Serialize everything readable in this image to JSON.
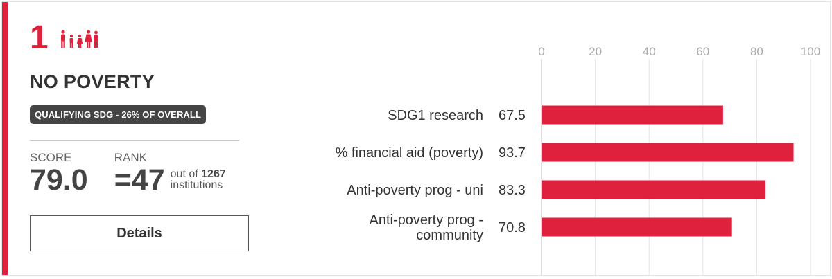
{
  "goal": {
    "number": "1",
    "icon": "family-icon",
    "title": "NO POVERTY",
    "badge": "QUALIFYING SDG - 26% OF OVERALL",
    "accent_color": "#e0213d"
  },
  "score": {
    "label": "SCORE",
    "value": "79.0"
  },
  "rank": {
    "label": "RANK",
    "value": "=47",
    "out_of_prefix": "out of",
    "total": "1267",
    "suffix": "institutions"
  },
  "details_button": {
    "label": "Details"
  },
  "chart_data": {
    "type": "bar",
    "orientation": "horizontal",
    "categories": [
      [
        "SDG1 research"
      ],
      [
        "% financial aid (poverty)"
      ],
      [
        "Anti-poverty prog - uni"
      ],
      [
        "Anti-poverty prog -",
        "community"
      ]
    ],
    "values": [
      67.5,
      93.7,
      83.3,
      70.8
    ],
    "value_labels": [
      "67.5",
      "93.7",
      "83.3",
      "70.8"
    ],
    "ticks": [
      "0",
      "20",
      "40",
      "60",
      "80",
      "100"
    ],
    "xlim": [
      0,
      100
    ],
    "grid": true,
    "bar_color": "#e0213d",
    "tick_color": "#aaaaaa",
    "grid_color": "#e3e3e3"
  }
}
